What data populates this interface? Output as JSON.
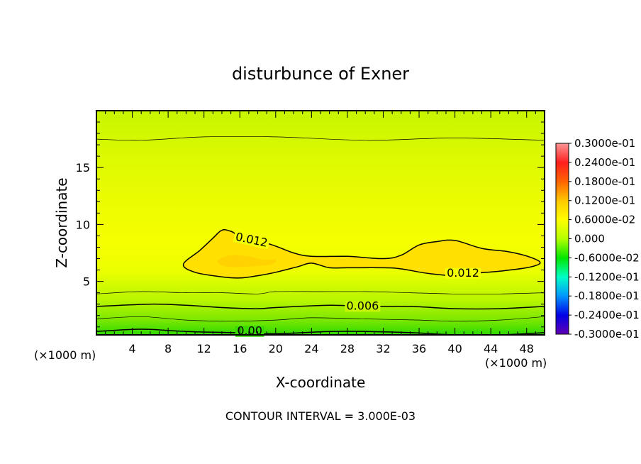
{
  "chart_data": {
    "type": "heatmap",
    "title": "disturbunce of Exner",
    "xlabel": "X-coordinate",
    "ylabel": "Z-coordinate",
    "x_unit": "(×1000 m)",
    "y_unit": "(×1000 m)",
    "xlim": [
      0,
      50
    ],
    "ylim": [
      0.3,
      20
    ],
    "x_ticks": [
      4,
      8,
      12,
      16,
      20,
      24,
      28,
      32,
      36,
      40,
      44,
      48
    ],
    "y_ticks": [
      5,
      10,
      15
    ],
    "footer": "CONTOUR INTERVAL = 3.000E-03",
    "colorbar": {
      "labels": [
        "0.3000e-01",
        "0.2400e-01",
        "0.1800e-01",
        "0.1200e-01",
        "0.6000e-02",
        "0.000",
        "-0.6000e-02",
        "-0.1200e-01",
        "-0.1800e-01",
        "-0.2400e-01",
        "-0.3000e-01"
      ],
      "colors": [
        "#ff9696",
        "#ff1e1e",
        "#ff6400",
        "#ffc800",
        "#ffff00",
        "#b4ff00",
        "#00e600",
        "#00ffc8",
        "#0096ff",
        "#0000e6",
        "#6400b4"
      ]
    },
    "contour_labels": [
      {
        "text": "0.012",
        "x": 17.3,
        "z": 8.6,
        "rotate": 12
      },
      {
        "text": "0.012",
        "x": 40.9,
        "z": 5.7,
        "rotate": 0
      },
      {
        "text": "0.006",
        "x": 29.7,
        "z": 2.8,
        "rotate": 0
      },
      {
        "text": "0.00",
        "x": 17.1,
        "z": 0.6,
        "rotate": 0
      }
    ],
    "contours": [
      {
        "level": 0.015,
        "color": "#ffd200",
        "fill": true,
        "closed": true,
        "points": [
          [
            13.5,
            6.8
          ],
          [
            15,
            7.3
          ],
          [
            17,
            7.2
          ],
          [
            18.5,
            6.9
          ],
          [
            20,
            6.9
          ],
          [
            19.5,
            6.5
          ],
          [
            17,
            6.3
          ],
          [
            14.5,
            6.3
          ]
        ]
      },
      {
        "level": 0.012,
        "color": "#ffe000",
        "fill": true,
        "closed": true,
        "width": 1.5,
        "points": [
          [
            9.7,
            6.5
          ],
          [
            11.5,
            7.7
          ],
          [
            13,
            8.8
          ],
          [
            14,
            9.5
          ],
          [
            15,
            9.4
          ],
          [
            16,
            9
          ],
          [
            18,
            8.6
          ],
          [
            20,
            8.1
          ],
          [
            22,
            7.5
          ],
          [
            24,
            7.2
          ],
          [
            28,
            7.2
          ],
          [
            32,
            7
          ],
          [
            34,
            7.3
          ],
          [
            36,
            8.2
          ],
          [
            38,
            8.5
          ],
          [
            40,
            8.6
          ],
          [
            43,
            7.9
          ],
          [
            46,
            7.6
          ],
          [
            48.5,
            7.1
          ],
          [
            49.5,
            6.6
          ],
          [
            48,
            6.2
          ],
          [
            45,
            5.9
          ],
          [
            42,
            5.7
          ],
          [
            40,
            5.5
          ],
          [
            37,
            5.7
          ],
          [
            34,
            6.1
          ],
          [
            32,
            6.2
          ],
          [
            28,
            6.2
          ],
          [
            26,
            6.2
          ],
          [
            24,
            6.6
          ],
          [
            22.5,
            6.3
          ],
          [
            20,
            5.8
          ],
          [
            18,
            5.5
          ],
          [
            16,
            5.3
          ],
          [
            14,
            5.4
          ],
          [
            11,
            5.8
          ]
        ]
      },
      {
        "level": 0.009,
        "color": "#000000",
        "width": 0.7,
        "closed": false,
        "points": [
          [
            0,
            3.9
          ],
          [
            5,
            4.1
          ],
          [
            10,
            4
          ],
          [
            14,
            4
          ],
          [
            18,
            3.9
          ],
          [
            20,
            4.1
          ],
          [
            25,
            4.1
          ],
          [
            30,
            4.1
          ],
          [
            35,
            4
          ],
          [
            40,
            3.9
          ],
          [
            45,
            3.9
          ],
          [
            50,
            4
          ]
        ]
      },
      {
        "level": 0.006,
        "color": "#000000",
        "width": 1.5,
        "closed": false,
        "points": [
          [
            0,
            2.8
          ],
          [
            6,
            3
          ],
          [
            10,
            2.9
          ],
          [
            14,
            2.7
          ],
          [
            18,
            2.6
          ],
          [
            20,
            2.7
          ],
          [
            26,
            2.9
          ],
          [
            30,
            2.8
          ],
          [
            35,
            2.8
          ],
          [
            40,
            2.6
          ],
          [
            45,
            2.6
          ],
          [
            50,
            2.8
          ]
        ]
      },
      {
        "level": 0.003,
        "color": "#000000",
        "width": 0.7,
        "closed": false,
        "points": [
          [
            0,
            1.7
          ],
          [
            5,
            1.9
          ],
          [
            10,
            1.6
          ],
          [
            15,
            1.5
          ],
          [
            20,
            1.6
          ],
          [
            24,
            1.8
          ],
          [
            30,
            1.7
          ],
          [
            36,
            1.6
          ],
          [
            40,
            1.5
          ],
          [
            45,
            1.6
          ],
          [
            50,
            1.9
          ]
        ]
      },
      {
        "level": 0,
        "color": "#000000",
        "width": 1.5,
        "closed": false,
        "points": [
          [
            0,
            0.6
          ],
          [
            5,
            0.8
          ],
          [
            10,
            0.6
          ],
          [
            15,
            0.5
          ],
          [
            20,
            0.4
          ],
          [
            26,
            0.6
          ],
          [
            30,
            0.6
          ],
          [
            35,
            0.5
          ],
          [
            40,
            0.3
          ],
          [
            45,
            0.3
          ],
          [
            50,
            0.5
          ]
        ]
      },
      {
        "level": 0.012,
        "color": "#000000",
        "width": 0.7,
        "closed": false,
        "points": [
          [
            0,
            17.5
          ],
          [
            5,
            17.4
          ],
          [
            12,
            17.7
          ],
          [
            20,
            17.7
          ],
          [
            30,
            17.4
          ],
          [
            40,
            17.6
          ],
          [
            50,
            17.4
          ]
        ]
      }
    ]
  }
}
